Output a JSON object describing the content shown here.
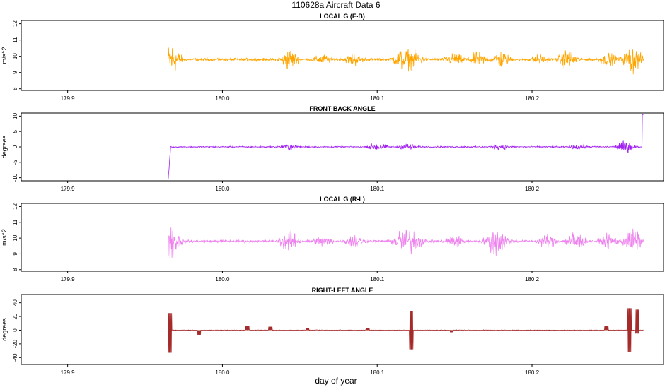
{
  "figure": {
    "title": "110628a   Aircraft Data 6",
    "xlabel": "day of year"
  },
  "chart_data": [
    {
      "type": "line",
      "title": "LOCAL G (F-B)",
      "ylabel": "m/s^2",
      "color": "#FFA500",
      "xlim": [
        179.87,
        180.285
      ],
      "ylim": [
        7.9,
        12.2
      ],
      "x_ticks": [
        "179.9",
        "180.0",
        "180.1",
        "180.2"
      ],
      "y_ticks": [
        "8",
        "9",
        "10",
        "11",
        "12"
      ],
      "grid": false,
      "series": [
        {
          "x_start": 179.965,
          "x_end": 180.272,
          "baseline": 9.8,
          "noise": 0.12,
          "bursts": [
            {
              "x": 179.967,
              "amp": 1.5
            },
            {
              "x": 180.043,
              "amp": 0.9
            },
            {
              "x": 180.065,
              "amp": 0.4
            },
            {
              "x": 180.085,
              "amp": 0.5
            },
            {
              "x": 180.116,
              "amp": 0.9
            },
            {
              "x": 180.124,
              "amp": 0.7
            },
            {
              "x": 180.15,
              "amp": 0.5
            },
            {
              "x": 180.165,
              "amp": 0.6
            },
            {
              "x": 180.18,
              "amp": 0.7
            },
            {
              "x": 180.205,
              "amp": 0.4
            },
            {
              "x": 180.223,
              "amp": 0.9
            },
            {
              "x": 180.25,
              "amp": 0.5
            },
            {
              "x": 180.265,
              "amp": 1.2
            }
          ]
        }
      ]
    },
    {
      "type": "line",
      "title": "FRONT-BACK ANGLE",
      "ylabel": "degrees",
      "color": "#A020F0",
      "xlim": [
        179.87,
        180.285
      ],
      "ylim": [
        -11,
        11
      ],
      "x_ticks": [
        "179.9",
        "180.0",
        "180.1",
        "180.2"
      ],
      "y_ticks": [
        "-10",
        "-5",
        "0",
        "5",
        "10"
      ],
      "grid": false,
      "series": [
        {
          "x_start": 179.965,
          "x_end": 180.272,
          "baseline": 0.0,
          "noise": 0.3,
          "start_dip": -10.5,
          "end_spike": 10.5,
          "bursts": [
            {
              "x": 180.043,
              "amp": 1.2
            },
            {
              "x": 180.1,
              "amp": 2.0
            },
            {
              "x": 180.12,
              "amp": 1.5
            },
            {
              "x": 180.18,
              "amp": 1.2
            },
            {
              "x": 180.23,
              "amp": 1.0
            },
            {
              "x": 180.26,
              "amp": 3.0
            }
          ]
        }
      ]
    },
    {
      "type": "line",
      "title": "LOCAL G (R-L)",
      "ylabel": "m/s^2",
      "color": "#EE82EE",
      "xlim": [
        179.87,
        180.285
      ],
      "ylim": [
        7.9,
        12.2
      ],
      "x_ticks": [
        "179.9",
        "180.0",
        "180.1",
        "180.2"
      ],
      "y_ticks": [
        "8",
        "9",
        "10",
        "11",
        "12"
      ],
      "grid": false,
      "series": [
        {
          "x_start": 179.965,
          "x_end": 180.272,
          "baseline": 9.8,
          "noise": 0.12,
          "bursts": [
            {
              "x": 179.967,
              "amp": 1.7
            },
            {
              "x": 180.043,
              "amp": 1.0
            },
            {
              "x": 180.065,
              "amp": 0.5
            },
            {
              "x": 180.085,
              "amp": 0.6
            },
            {
              "x": 180.116,
              "amp": 1.1
            },
            {
              "x": 180.124,
              "amp": 0.9
            },
            {
              "x": 180.15,
              "amp": 0.6
            },
            {
              "x": 180.175,
              "amp": 0.9
            },
            {
              "x": 180.18,
              "amp": 0.9
            },
            {
              "x": 180.21,
              "amp": 0.6
            },
            {
              "x": 180.228,
              "amp": 1.0
            },
            {
              "x": 180.25,
              "amp": 0.6
            },
            {
              "x": 180.265,
              "amp": 1.2
            }
          ]
        }
      ]
    },
    {
      "type": "line",
      "title": "RIGHT-LEFT ANGLE",
      "ylabel": "degrees",
      "color": "#A52A2A",
      "xlim": [
        179.87,
        180.285
      ],
      "ylim": [
        -50,
        52
      ],
      "x_ticks": [
        "179.9",
        "180.0",
        "180.1",
        "180.2"
      ],
      "y_ticks": [
        "-40",
        "-20",
        "0",
        "20",
        "40"
      ],
      "grid": false,
      "series": [
        {
          "x_start": 179.965,
          "x_end": 180.272,
          "baseline": 0.0,
          "noise": 0.6,
          "events": [
            {
              "x": 179.966,
              "low": -33,
              "high": 25
            },
            {
              "x": 179.985,
              "low": -7,
              "high": 0
            },
            {
              "x": 180.016,
              "low": 0,
              "high": 6
            },
            {
              "x": 180.031,
              "low": 0,
              "high": 5
            },
            {
              "x": 180.055,
              "low": 0,
              "high": 3
            },
            {
              "x": 180.094,
              "low": 0,
              "high": 3
            },
            {
              "x": 180.122,
              "low": -28,
              "high": 28
            },
            {
              "x": 180.148,
              "low": -3,
              "high": 0
            },
            {
              "x": 180.248,
              "low": 0,
              "high": 6
            },
            {
              "x": 180.263,
              "low": -32,
              "high": 32
            },
            {
              "x": 180.268,
              "low": -5,
              "high": 30
            }
          ]
        }
      ]
    }
  ]
}
